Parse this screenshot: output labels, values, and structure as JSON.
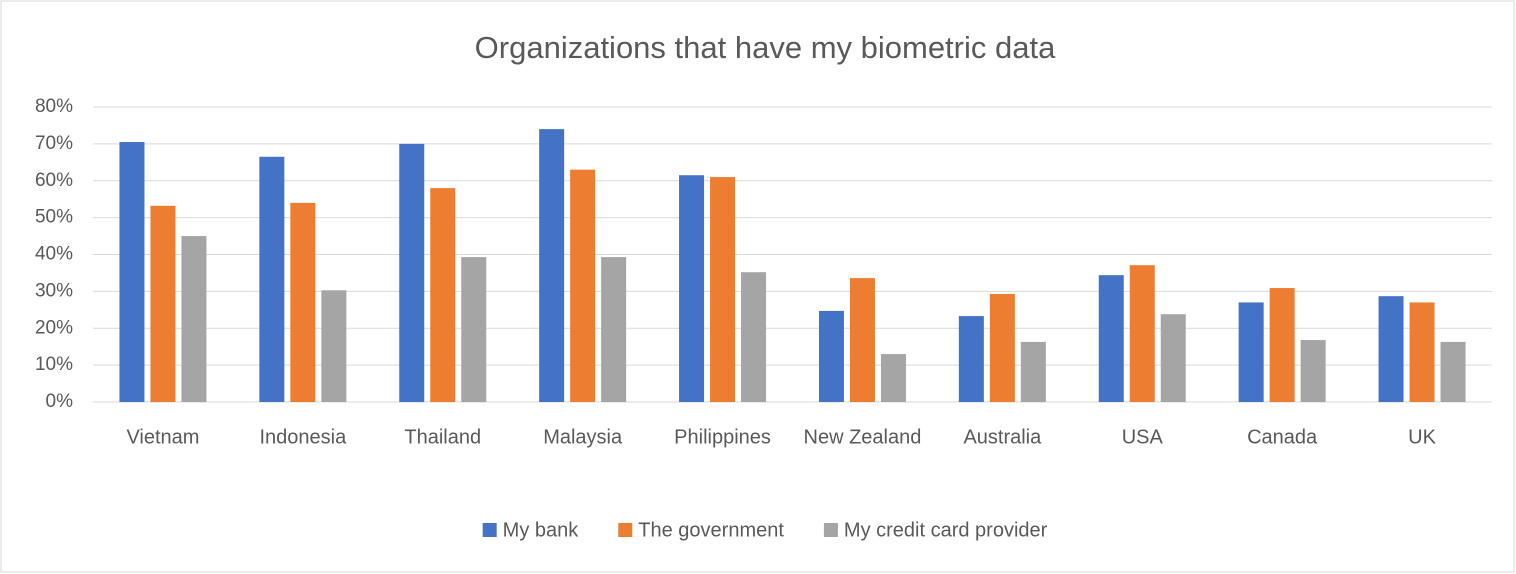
{
  "chart_data": {
    "type": "bar",
    "title": "Organizations that have my biometric data",
    "categories": [
      "Vietnam",
      "Indonesia",
      "Thailand",
      "Malaysia",
      "Philippines",
      "New Zealand",
      "Australia",
      "USA",
      "Canada",
      "UK"
    ],
    "series": [
      {
        "name": "My bank",
        "color": "#4472c4",
        "values": [
          70.5,
          66.5,
          70,
          74,
          61.5,
          24.7,
          23.3,
          34.4,
          27,
          28.7
        ]
      },
      {
        "name": "The government",
        "color": "#ed7d31",
        "values": [
          53.2,
          54,
          58,
          63,
          61,
          33.6,
          29.3,
          37.1,
          30.9,
          27
        ]
      },
      {
        "name": "My credit card provider",
        "color": "#a5a5a5",
        "values": [
          45,
          30.3,
          39.3,
          39.3,
          35.2,
          13,
          16.3,
          23.8,
          16.8,
          16.3
        ]
      }
    ],
    "ylim": [
      0,
      80
    ],
    "yticks": [
      {
        "value": 0,
        "label": "0%"
      },
      {
        "value": 10,
        "label": "10%"
      },
      {
        "value": 20,
        "label": "20%"
      },
      {
        "value": 30,
        "label": "30%"
      },
      {
        "value": 40,
        "label": "40%"
      },
      {
        "value": 50,
        "label": "50%"
      },
      {
        "value": 60,
        "label": "60%"
      },
      {
        "value": 70,
        "label": "70%"
      },
      {
        "value": 80,
        "label": "80%"
      }
    ],
    "grid": true,
    "legend": "bottom"
  }
}
